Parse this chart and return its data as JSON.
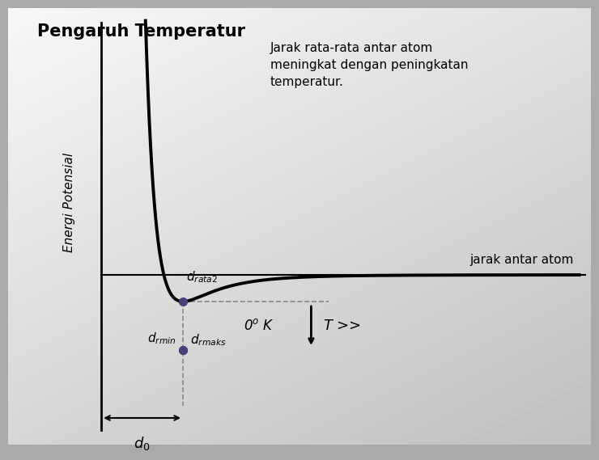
{
  "title": "Pengaruh Temperatur",
  "ylabel": "Energi Potensial",
  "xlabel": "jarak antar atom",
  "annotation_text": "Jarak rata-rata antar atom\nmeningkat dengan peningkatan\ntemperatur.",
  "label_drmin": "d$_{rmin}$",
  "label_drata2": "d$_{rata2}$",
  "label_drmaks": "d$_{rmaks}$",
  "label_d0": "d$_0$",
  "label_T": "$T$ >>",
  "label_0K": "0$^o$ $K$",
  "curve_color": "#000000",
  "dashed_color": "#888888",
  "dot_color": "#4a3f7a",
  "zero_line_color": "#000000",
  "axis_color": "#000000"
}
